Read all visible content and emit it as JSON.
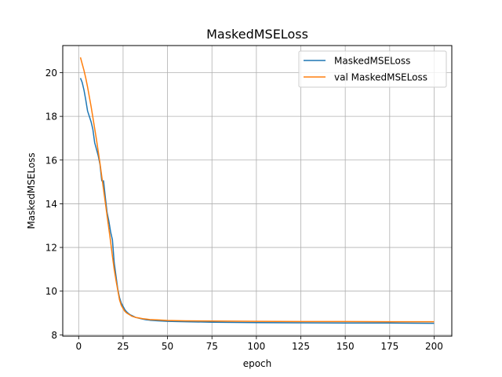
{
  "chart_data": {
    "type": "line",
    "title": "MaskedMSELoss",
    "xlabel": "epoch",
    "ylabel": "MaskedMSELoss",
    "xlim": [
      -8.95,
      209.95
    ],
    "ylim": [
      7.94,
      21.24
    ],
    "xticks": [
      0,
      25,
      50,
      75,
      100,
      125,
      150,
      175,
      200
    ],
    "yticks": [
      8,
      10,
      12,
      14,
      16,
      18,
      20
    ],
    "grid": true,
    "legend": "upper right",
    "series": [
      {
        "name": "MaskedMSELoss",
        "color": "#1f77b4",
        "points": [
          [
            1,
            19.75
          ],
          [
            2,
            19.55
          ],
          [
            3,
            19.2
          ],
          [
            4,
            18.75
          ],
          [
            5,
            18.25
          ],
          [
            6,
            18.0
          ],
          [
            7,
            17.75
          ],
          [
            8,
            17.4
          ],
          [
            9,
            16.8
          ],
          [
            10,
            16.5
          ],
          [
            11,
            16.2
          ],
          [
            12,
            15.8
          ],
          [
            13,
            15.05
          ],
          [
            14,
            15.05
          ],
          [
            15,
            14.3
          ],
          [
            16,
            13.6
          ],
          [
            17,
            13.2
          ],
          [
            18,
            12.7
          ],
          [
            19,
            12.35
          ],
          [
            20,
            11.3
          ],
          [
            21,
            10.7
          ],
          [
            22,
            10.1
          ],
          [
            23,
            9.7
          ],
          [
            24,
            9.45
          ],
          [
            25,
            9.3
          ],
          [
            26,
            9.15
          ],
          [
            27,
            9.05
          ],
          [
            28,
            8.98
          ],
          [
            29,
            8.92
          ],
          [
            30,
            8.88
          ],
          [
            32,
            8.8
          ],
          [
            34,
            8.76
          ],
          [
            36,
            8.72
          ],
          [
            38,
            8.69
          ],
          [
            40,
            8.67
          ],
          [
            45,
            8.64
          ],
          [
            50,
            8.62
          ],
          [
            60,
            8.6
          ],
          [
            75,
            8.58
          ],
          [
            100,
            8.56
          ],
          [
            125,
            8.55
          ],
          [
            150,
            8.54
          ],
          [
            175,
            8.54
          ],
          [
            200,
            8.53
          ]
        ]
      },
      {
        "name": "val MaskedMSELoss",
        "color": "#ff7f0e",
        "points": [
          [
            1,
            20.7
          ],
          [
            2,
            20.4
          ],
          [
            3,
            20.1
          ],
          [
            4,
            19.75
          ],
          [
            5,
            19.35
          ],
          [
            6,
            18.9
          ],
          [
            7,
            18.45
          ],
          [
            8,
            17.95
          ],
          [
            9,
            17.45
          ],
          [
            10,
            16.95
          ],
          [
            11,
            16.4
          ],
          [
            12,
            15.85
          ],
          [
            13,
            15.25
          ],
          [
            14,
            14.65
          ],
          [
            15,
            14.05
          ],
          [
            16,
            13.45
          ],
          [
            17,
            12.85
          ],
          [
            18,
            12.25
          ],
          [
            19,
            11.6
          ],
          [
            20,
            11.0
          ],
          [
            21,
            10.5
          ],
          [
            22,
            10.05
          ],
          [
            23,
            9.6
          ],
          [
            24,
            9.35
          ],
          [
            25,
            9.2
          ],
          [
            26,
            9.08
          ],
          [
            27,
            9.0
          ],
          [
            28,
            8.95
          ],
          [
            29,
            8.9
          ],
          [
            30,
            8.85
          ],
          [
            32,
            8.8
          ],
          [
            34,
            8.77
          ],
          [
            36,
            8.74
          ],
          [
            38,
            8.72
          ],
          [
            40,
            8.7
          ],
          [
            45,
            8.68
          ],
          [
            50,
            8.66
          ],
          [
            60,
            8.64
          ],
          [
            75,
            8.63
          ],
          [
            100,
            8.62
          ],
          [
            125,
            8.61
          ],
          [
            150,
            8.61
          ],
          [
            175,
            8.6
          ],
          [
            200,
            8.6
          ]
        ]
      }
    ]
  }
}
